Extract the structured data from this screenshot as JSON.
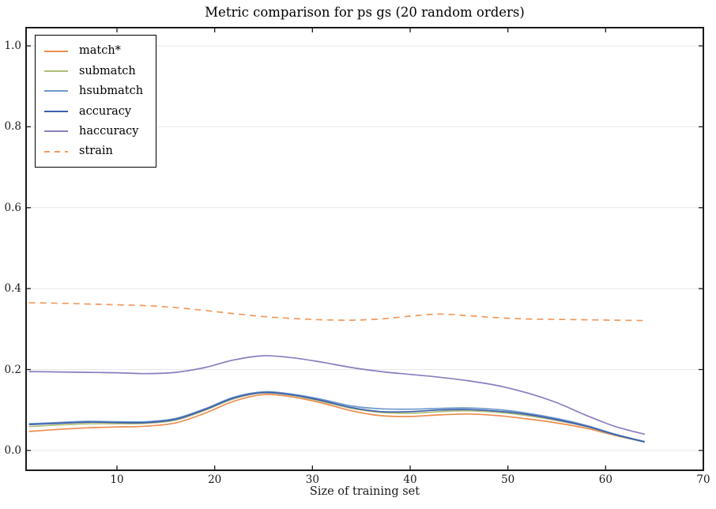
{
  "chart_data": {
    "type": "line",
    "title": "Metric comparison for ps gs (20 random orders)",
    "xlabel": "Size of training set",
    "ylabel": "",
    "xlim": [
      0.7,
      70
    ],
    "ylim": [
      -0.049,
      1.045
    ],
    "xticks": [
      10,
      20,
      30,
      40,
      50,
      60,
      70
    ],
    "xtick_labels": [
      "10",
      "20",
      "30",
      "40",
      "50",
      "60",
      "70"
    ],
    "yticks": [
      0.0,
      0.2,
      0.4,
      0.6,
      0.8,
      1.0
    ],
    "ytick_labels": [
      "0.0",
      "0.2",
      "0.4",
      "0.6",
      "0.8",
      "1.0"
    ],
    "grid": "horizontal",
    "grid_color": "#e7e7e7",
    "spine_color": "#1b1b1b",
    "legend_position": "upper left",
    "x": [
      1,
      4,
      7,
      10,
      13,
      16,
      19,
      22,
      25,
      28,
      31,
      34,
      37,
      40,
      43,
      46,
      49,
      52,
      55,
      58,
      61,
      64
    ],
    "series": [
      {
        "name": "match*",
        "color": "#ED8C4E",
        "style": "solid",
        "values": [
          0.047,
          0.052,
          0.056,
          0.058,
          0.06,
          0.068,
          0.092,
          0.122,
          0.138,
          0.132,
          0.117,
          0.098,
          0.086,
          0.084,
          0.088,
          0.09,
          0.086,
          0.078,
          0.068,
          0.055,
          0.037,
          0.021
        ]
      },
      {
        "name": "submatch",
        "color": "#AFBE78",
        "style": "solid",
        "values": [
          0.059,
          0.063,
          0.066,
          0.066,
          0.067,
          0.075,
          0.099,
          0.128,
          0.142,
          0.136,
          0.121,
          0.104,
          0.094,
          0.092,
          0.096,
          0.098,
          0.094,
          0.086,
          0.074,
          0.059,
          0.038,
          0.021
        ]
      },
      {
        "name": "hsubmatch",
        "color": "#6D99CB",
        "style": "solid",
        "values": [
          0.066,
          0.069,
          0.072,
          0.071,
          0.071,
          0.079,
          0.103,
          0.132,
          0.145,
          0.139,
          0.126,
          0.11,
          0.103,
          0.102,
          0.104,
          0.105,
          0.101,
          0.092,
          0.079,
          0.062,
          0.04,
          0.022
        ]
      },
      {
        "name": "accuracy",
        "color": "#3E5FAE",
        "style": "solid",
        "values": [
          0.064,
          0.067,
          0.07,
          0.069,
          0.069,
          0.077,
          0.101,
          0.13,
          0.143,
          0.137,
          0.123,
          0.106,
          0.096,
          0.096,
          0.1,
          0.101,
          0.097,
          0.089,
          0.076,
          0.06,
          0.039,
          0.021
        ]
      },
      {
        "name": "haccuracy",
        "color": "#8C7DBE",
        "style": "solid",
        "values": [
          0.195,
          0.194,
          0.193,
          0.192,
          0.19,
          0.193,
          0.205,
          0.224,
          0.234,
          0.229,
          0.218,
          0.205,
          0.195,
          0.188,
          0.181,
          0.172,
          0.16,
          0.142,
          0.118,
          0.087,
          0.059,
          0.04
        ]
      },
      {
        "name": "strain",
        "color": "#F09A5F",
        "style": "dashed",
        "values": [
          0.365,
          0.364,
          0.362,
          0.36,
          0.358,
          0.353,
          0.346,
          0.338,
          0.331,
          0.326,
          0.323,
          0.322,
          0.325,
          0.332,
          0.337,
          0.333,
          0.328,
          0.325,
          0.324,
          0.323,
          0.322,
          0.321
        ]
      }
    ]
  }
}
